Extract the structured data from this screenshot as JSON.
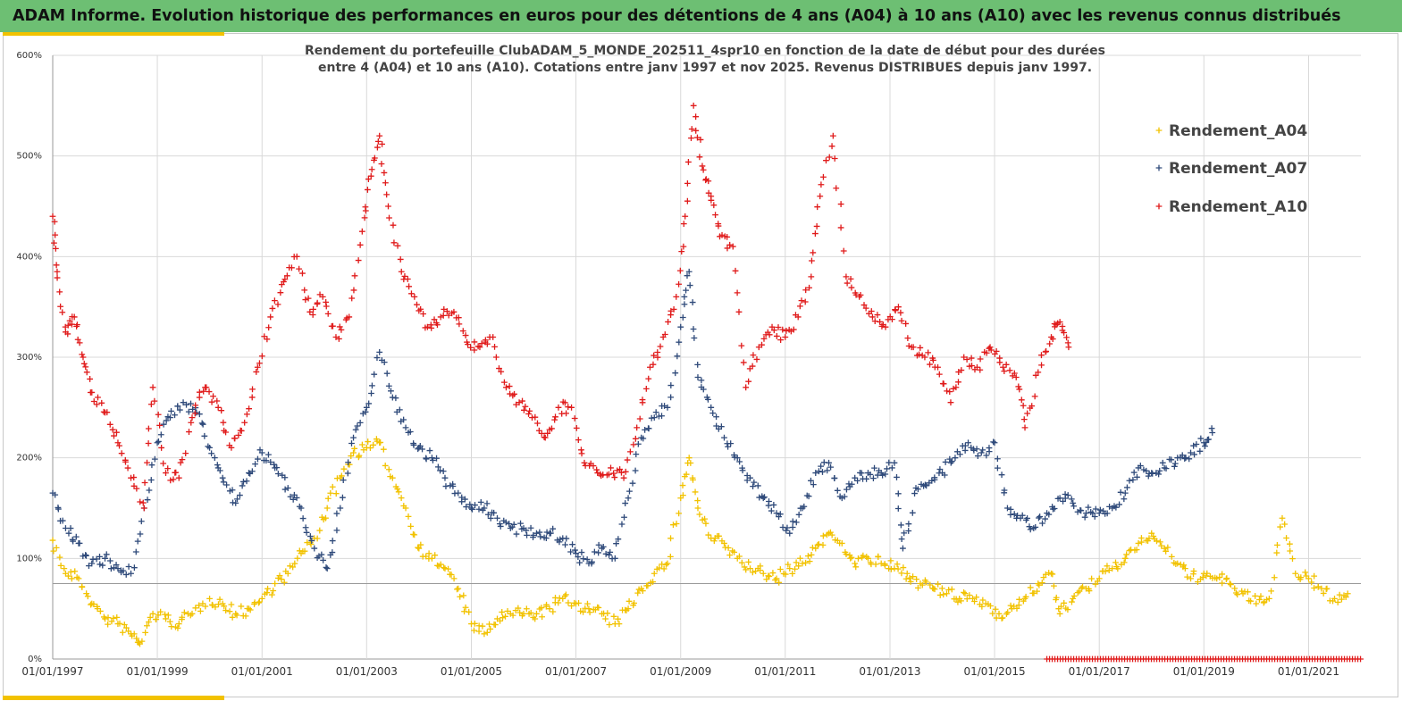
{
  "header": {
    "title": "ADAM Informe. Evolution historique des performances en euros pour des détentions de 4 ans (A04) à 10 ans (A10) avec les revenus connus distribués"
  },
  "colors": {
    "A04": "#f2c200",
    "A07": "#2f4a7a",
    "A10": "#e01b1b",
    "banner": "#6dbf73"
  },
  "chart_data": {
    "type": "scatter",
    "title": "Rendement du portefeuille ClubADAM_5_MONDE_202511_4spr10  en fonction de la date de début pour des durées",
    "subtitle": "entre 4 (A04) et 10 ans (A10). Cotations entre janv 1997 et nov 2025. Revenus DISTRIBUES depuis janv 1997.",
    "xlabel": "",
    "ylabel": "",
    "x_range": [
      "1997-01-01",
      "2022-01-01"
    ],
    "ylim": [
      0,
      600
    ],
    "y_ticks": [
      "0%",
      "100%",
      "200%",
      "300%",
      "400%",
      "500%",
      "600%"
    ],
    "x_ticks": [
      "01/01/1997",
      "01/01/1999",
      "01/01/2001",
      "01/01/2003",
      "01/01/2005",
      "01/01/2007",
      "01/01/2009",
      "01/01/2011",
      "01/01/2013",
      "01/01/2015",
      "01/01/2017",
      "01/01/2019",
      "01/01/2021"
    ],
    "grid": true,
    "legend_position": "top-right",
    "reference_line": 75,
    "series": [
      {
        "name": "Rendement_A04",
        "color": "#f2c200",
        "points": [
          [
            "1997-01",
            118
          ],
          [
            "1997-04",
            85
          ],
          [
            "1997-07",
            80
          ],
          [
            "1997-10",
            55
          ],
          [
            "1998-01",
            40
          ],
          [
            "1998-04",
            35
          ],
          [
            "1998-07",
            25
          ],
          [
            "1998-09",
            15
          ],
          [
            "1998-12",
            45
          ],
          [
            "1999-03",
            40
          ],
          [
            "1999-06",
            35
          ],
          [
            "1999-09",
            45
          ],
          [
            "2000-01",
            60
          ],
          [
            "2000-04",
            55
          ],
          [
            "2000-07",
            45
          ],
          [
            "2000-10",
            50
          ],
          [
            "2001-01",
            60
          ],
          [
            "2001-04",
            75
          ],
          [
            "2001-07",
            85
          ],
          [
            "2001-10",
            105
          ],
          [
            "2002-01",
            120
          ],
          [
            "2002-04",
            150
          ],
          [
            "2002-07",
            180
          ],
          [
            "2002-10",
            205
          ],
          [
            "2003-01",
            210
          ],
          [
            "2003-04",
            215
          ],
          [
            "2003-07",
            180
          ],
          [
            "2003-10",
            150
          ],
          [
            "2004-01",
            110
          ],
          [
            "2004-04",
            100
          ],
          [
            "2004-07",
            90
          ],
          [
            "2004-10",
            70
          ],
          [
            "2005-01",
            35
          ],
          [
            "2005-04",
            25
          ],
          [
            "2005-07",
            40
          ],
          [
            "2005-10",
            45
          ],
          [
            "2006-01",
            45
          ],
          [
            "2006-04",
            45
          ],
          [
            "2006-07",
            50
          ],
          [
            "2006-10",
            60
          ],
          [
            "2007-01",
            55
          ],
          [
            "2007-04",
            50
          ],
          [
            "2007-07",
            45
          ],
          [
            "2007-10",
            35
          ],
          [
            "2008-01",
            50
          ],
          [
            "2008-04",
            70
          ],
          [
            "2008-07",
            85
          ],
          [
            "2008-10",
            95
          ],
          [
            "2009-01",
            160
          ],
          [
            "2009-03",
            200
          ],
          [
            "2009-05",
            150
          ],
          [
            "2009-08",
            120
          ],
          [
            "2009-11",
            115
          ],
          [
            "2010-02",
            100
          ],
          [
            "2010-05",
            90
          ],
          [
            "2010-08",
            85
          ],
          [
            "2010-11",
            80
          ],
          [
            "2011-02",
            90
          ],
          [
            "2011-05",
            95
          ],
          [
            "2011-08",
            110
          ],
          [
            "2011-11",
            125
          ],
          [
            "2012-02",
            115
          ],
          [
            "2012-05",
            95
          ],
          [
            "2012-08",
            100
          ],
          [
            "2012-11",
            95
          ],
          [
            "2013-02",
            90
          ],
          [
            "2013-05",
            85
          ],
          [
            "2013-08",
            75
          ],
          [
            "2013-11",
            70
          ],
          [
            "2014-02",
            65
          ],
          [
            "2014-05",
            60
          ],
          [
            "2014-08",
            60
          ],
          [
            "2014-11",
            55
          ],
          [
            "2015-02",
            45
          ],
          [
            "2015-05",
            50
          ],
          [
            "2015-08",
            60
          ],
          [
            "2015-11",
            75
          ],
          [
            "2016-02",
            85
          ],
          [
            "2016-04",
            45
          ],
          [
            "2016-07",
            60
          ],
          [
            "2016-10",
            70
          ],
          [
            "2017-01",
            80
          ],
          [
            "2017-04",
            90
          ],
          [
            "2017-07",
            100
          ],
          [
            "2017-10",
            115
          ],
          [
            "2018-01",
            125
          ],
          [
            "2018-04",
            110
          ],
          [
            "2018-07",
            95
          ],
          [
            "2018-10",
            80
          ],
          [
            "2019-01",
            85
          ],
          [
            "2019-04",
            80
          ],
          [
            "2019-07",
            75
          ],
          [
            "2019-10",
            65
          ],
          [
            "2020-01",
            55
          ],
          [
            "2020-04",
            60
          ],
          [
            "2020-07",
            140
          ],
          [
            "2020-10",
            85
          ],
          [
            "2021-01",
            80
          ],
          [
            "2021-04",
            70
          ],
          [
            "2021-07",
            60
          ],
          [
            "2021-10",
            65
          ]
        ]
      },
      {
        "name": "Rendement_A07",
        "color": "#2f4a7a",
        "points": [
          [
            "1997-01",
            165
          ],
          [
            "1997-04",
            130
          ],
          [
            "1997-07",
            115
          ],
          [
            "1997-10",
            95
          ],
          [
            "1998-01",
            100
          ],
          [
            "1998-04",
            90
          ],
          [
            "1998-07",
            85
          ],
          [
            "1998-10",
            150
          ],
          [
            "1999-01",
            215
          ],
          [
            "1999-04",
            240
          ],
          [
            "1999-07",
            255
          ],
          [
            "1999-10",
            245
          ],
          [
            "2000-01",
            210
          ],
          [
            "2000-04",
            180
          ],
          [
            "2000-07",
            155
          ],
          [
            "2000-10",
            185
          ],
          [
            "2001-01",
            205
          ],
          [
            "2001-04",
            190
          ],
          [
            "2001-07",
            170
          ],
          [
            "2001-10",
            150
          ],
          [
            "2002-01",
            110
          ],
          [
            "2002-04",
            90
          ],
          [
            "2002-07",
            150
          ],
          [
            "2002-10",
            220
          ],
          [
            "2003-01",
            250
          ],
          [
            "2003-04",
            305
          ],
          [
            "2003-07",
            260
          ],
          [
            "2003-10",
            230
          ],
          [
            "2004-01",
            210
          ],
          [
            "2004-04",
            200
          ],
          [
            "2004-07",
            180
          ],
          [
            "2004-10",
            165
          ],
          [
            "2005-01",
            150
          ],
          [
            "2005-04",
            150
          ],
          [
            "2005-07",
            140
          ],
          [
            "2005-10",
            130
          ],
          [
            "2006-01",
            130
          ],
          [
            "2006-04",
            125
          ],
          [
            "2006-07",
            125
          ],
          [
            "2006-10",
            120
          ],
          [
            "2007-01",
            105
          ],
          [
            "2007-04",
            95
          ],
          [
            "2007-07",
            110
          ],
          [
            "2007-10",
            100
          ],
          [
            "2008-01",
            160
          ],
          [
            "2008-04",
            220
          ],
          [
            "2008-07",
            240
          ],
          [
            "2008-10",
            250
          ],
          [
            "2009-01",
            330
          ],
          [
            "2009-03",
            385
          ],
          [
            "2009-05",
            280
          ],
          [
            "2009-08",
            250
          ],
          [
            "2009-11",
            220
          ],
          [
            "2010-02",
            200
          ],
          [
            "2010-05",
            180
          ],
          [
            "2010-08",
            160
          ],
          [
            "2010-11",
            145
          ],
          [
            "2011-02",
            125
          ],
          [
            "2011-05",
            150
          ],
          [
            "2011-08",
            185
          ],
          [
            "2011-11",
            195
          ],
          [
            "2012-02",
            160
          ],
          [
            "2012-05",
            180
          ],
          [
            "2012-08",
            185
          ],
          [
            "2012-11",
            185
          ],
          [
            "2013-02",
            195
          ],
          [
            "2013-04",
            110
          ],
          [
            "2013-07",
            170
          ],
          [
            "2013-10",
            175
          ],
          [
            "2014-01",
            185
          ],
          [
            "2014-04",
            200
          ],
          [
            "2014-07",
            215
          ],
          [
            "2014-10",
            205
          ],
          [
            "2015-01",
            215
          ],
          [
            "2015-04",
            150
          ],
          [
            "2015-07",
            140
          ],
          [
            "2015-10",
            130
          ],
          [
            "2016-01",
            145
          ],
          [
            "2016-04",
            160
          ],
          [
            "2016-07",
            155
          ],
          [
            "2016-10",
            145
          ],
          [
            "2017-01",
            145
          ],
          [
            "2017-04",
            150
          ],
          [
            "2017-07",
            165
          ],
          [
            "2017-10",
            190
          ],
          [
            "2018-01",
            185
          ],
          [
            "2018-04",
            190
          ],
          [
            "2018-07",
            200
          ],
          [
            "2018-10",
            205
          ],
          [
            "2019-01",
            215
          ],
          [
            "2019-03",
            225
          ]
        ]
      },
      {
        "name": "Rendement_A10",
        "color": "#e01b1b",
        "points": [
          [
            "1997-01",
            440
          ],
          [
            "1997-02",
            385
          ],
          [
            "1997-04",
            325
          ],
          [
            "1997-06",
            340
          ],
          [
            "1997-08",
            300
          ],
          [
            "1997-10",
            265
          ],
          [
            "1998-01",
            245
          ],
          [
            "1998-04",
            215
          ],
          [
            "1998-07",
            180
          ],
          [
            "1998-10",
            150
          ],
          [
            "1998-12",
            270
          ],
          [
            "1999-03",
            185
          ],
          [
            "1999-06",
            180
          ],
          [
            "1999-09",
            240
          ],
          [
            "1999-12",
            270
          ],
          [
            "2000-03",
            250
          ],
          [
            "2000-06",
            210
          ],
          [
            "2000-09",
            235
          ],
          [
            "2000-12",
            290
          ],
          [
            "2001-03",
            340
          ],
          [
            "2001-06",
            375
          ],
          [
            "2001-09",
            400
          ],
          [
            "2001-12",
            345
          ],
          [
            "2002-03",
            360
          ],
          [
            "2002-06",
            320
          ],
          [
            "2002-09",
            340
          ],
          [
            "2002-12",
            425
          ],
          [
            "2003-02",
            480
          ],
          [
            "2003-04",
            520
          ],
          [
            "2003-06",
            450
          ],
          [
            "2003-09",
            385
          ],
          [
            "2003-12",
            360
          ],
          [
            "2004-03",
            330
          ],
          [
            "2004-06",
            340
          ],
          [
            "2004-09",
            345
          ],
          [
            "2004-12",
            315
          ],
          [
            "2005-03",
            310
          ],
          [
            "2005-06",
            320
          ],
          [
            "2005-09",
            270
          ],
          [
            "2005-12",
            255
          ],
          [
            "2006-03",
            240
          ],
          [
            "2006-06",
            220
          ],
          [
            "2006-09",
            250
          ],
          [
            "2006-12",
            250
          ],
          [
            "2007-03",
            195
          ],
          [
            "2007-06",
            185
          ],
          [
            "2007-09",
            190
          ],
          [
            "2007-12",
            180
          ],
          [
            "2008-03",
            230
          ],
          [
            "2008-06",
            290
          ],
          [
            "2008-09",
            320
          ],
          [
            "2008-12",
            360
          ],
          [
            "2009-02",
            440
          ],
          [
            "2009-04",
            550
          ],
          [
            "2009-06",
            490
          ],
          [
            "2009-08",
            460
          ],
          [
            "2009-10",
            420
          ],
          [
            "2010-01",
            410
          ],
          [
            "2010-04",
            270
          ],
          [
            "2010-07",
            310
          ],
          [
            "2010-10",
            330
          ],
          [
            "2011-01",
            320
          ],
          [
            "2011-04",
            340
          ],
          [
            "2011-07",
            380
          ],
          [
            "2011-09",
            460
          ],
          [
            "2011-12",
            520
          ],
          [
            "2012-03",
            380
          ],
          [
            "2012-06",
            360
          ],
          [
            "2012-09",
            340
          ],
          [
            "2012-12",
            330
          ],
          [
            "2013-03",
            350
          ],
          [
            "2013-06",
            310
          ],
          [
            "2013-09",
            300
          ],
          [
            "2013-12",
            290
          ],
          [
            "2014-03",
            255
          ],
          [
            "2014-06",
            300
          ],
          [
            "2014-09",
            290
          ],
          [
            "2014-12",
            310
          ],
          [
            "2015-03",
            290
          ],
          [
            "2015-06",
            280
          ],
          [
            "2015-08",
            230
          ],
          [
            "2015-11",
            285
          ],
          [
            "2016-02",
            320
          ],
          [
            "2016-04",
            335
          ],
          [
            "2016-06",
            310
          ]
        ]
      }
    ],
    "zero_band": {
      "from": "2016-01",
      "to": "2022-01",
      "value": 0,
      "color": "#e01b1b"
    }
  }
}
